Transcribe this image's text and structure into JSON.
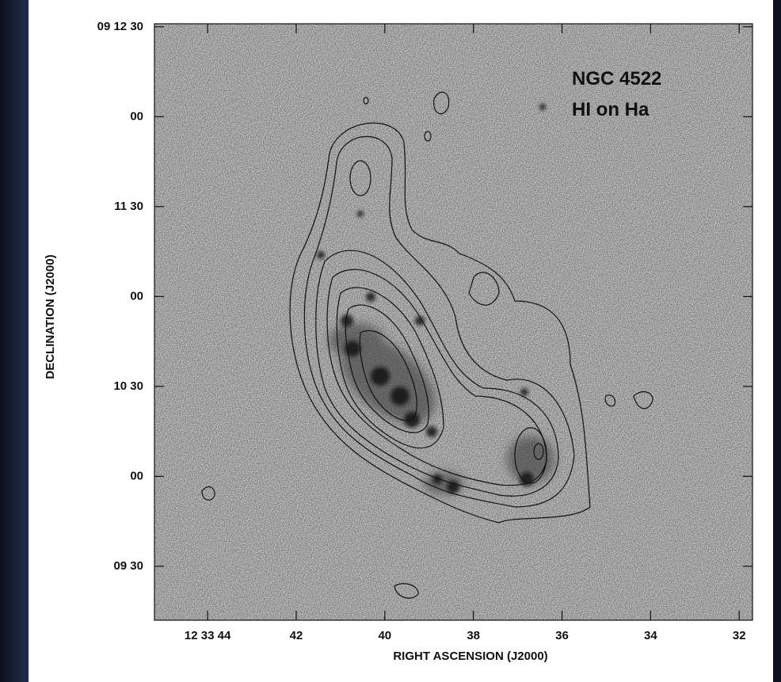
{
  "chart_data": {
    "type": "contour",
    "annotations": [
      "NGC 4522",
      "HI on Ha"
    ],
    "x_label": "RIGHT ASCENSION (J2000)",
    "y_label": "DECLINATION (J2000)",
    "xlim": [
      45.2,
      31.7
    ],
    "xticks": [
      {
        "value": 44,
        "label": "12 33 44"
      },
      42,
      40,
      38,
      36,
      34,
      32
    ],
    "ylim": [
      32952,
      33151
    ],
    "yticks": [
      {
        "value": 33150,
        "label": "09 12 30"
      },
      {
        "value": 33120,
        "label": "00"
      },
      {
        "value": 33090,
        "label": "11 30"
      },
      {
        "value": 33060,
        "label": "00"
      },
      {
        "value": 33030,
        "label": "10 30"
      },
      {
        "value": 33000,
        "label": "00"
      },
      {
        "value": 32970,
        "label": "09 30"
      }
    ]
  }
}
